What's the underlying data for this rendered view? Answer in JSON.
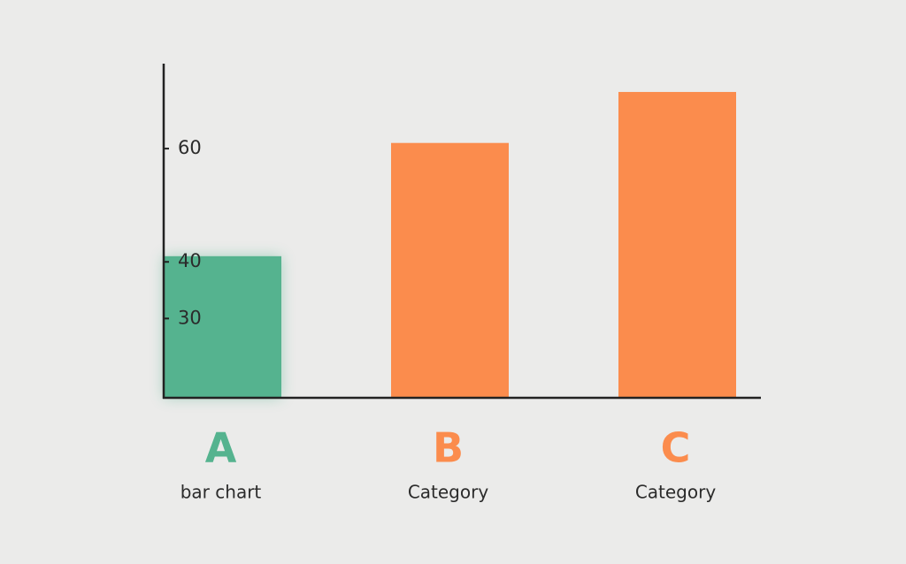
{
  "chart_data": {
    "type": "bar",
    "categories": [
      "A",
      "B",
      "C"
    ],
    "captions": [
      "bar chart",
      "Category",
      "Category"
    ],
    "values": [
      41,
      61,
      70
    ],
    "colors": [
      "#55b38f",
      "#fb8c4d",
      "#fb8c4d"
    ],
    "ylim": [
      16,
      75
    ],
    "yticks": [
      30,
      40,
      60
    ]
  }
}
